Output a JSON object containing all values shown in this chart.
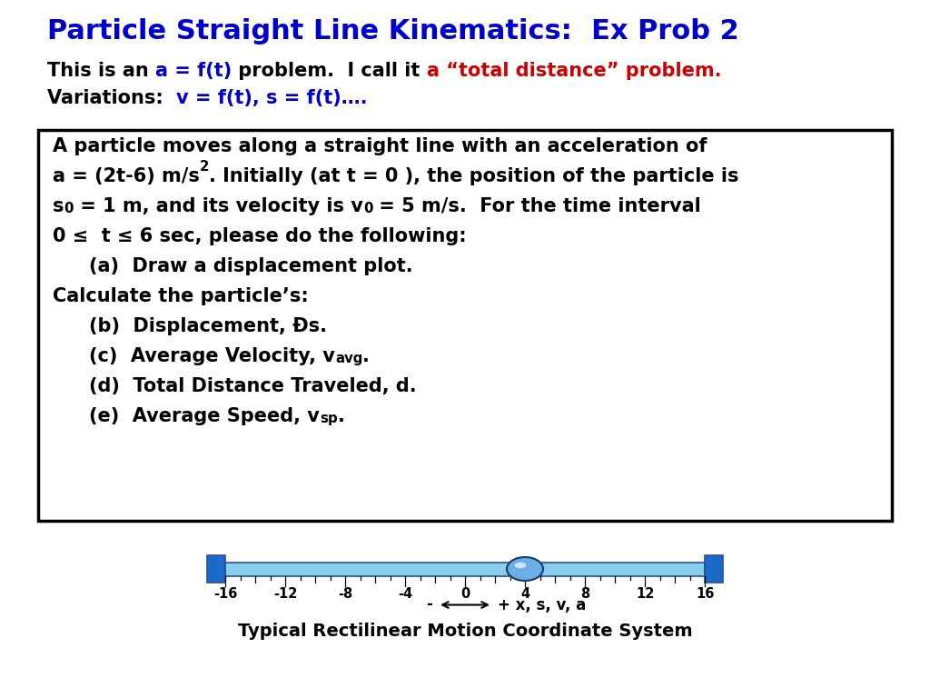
{
  "title": "Particle Straight Line Kinematics:  Ex Prob 2",
  "title_color": "#0000CC",
  "title_fontsize": 22,
  "background_color": "#FFFFFF",
  "box_border_color": "#000000",
  "line1_parts": [
    {
      "text": "This is an ",
      "color": "#000000"
    },
    {
      "text": "a = f(t)",
      "color": "#0000CC"
    },
    {
      "text": " problem.  I call it ",
      "color": "#000000"
    },
    {
      "text": "a “total distance” problem.",
      "color": "#CC0000"
    }
  ],
  "line2_parts": [
    {
      "text": "Variations:  ",
      "color": "#000000"
    },
    {
      "text": "v = f(t), s = f(t)….",
      "color": "#0000CC"
    }
  ],
  "fs_body": 15,
  "ruler_light": "#87CEEB",
  "ruler_dark": "#1B6AC9",
  "ruler_outline": "#2F4F8F",
  "particle_color": "#6AAFE6",
  "bottom_label": "Typical Rectilinear Motion Coordinate System"
}
